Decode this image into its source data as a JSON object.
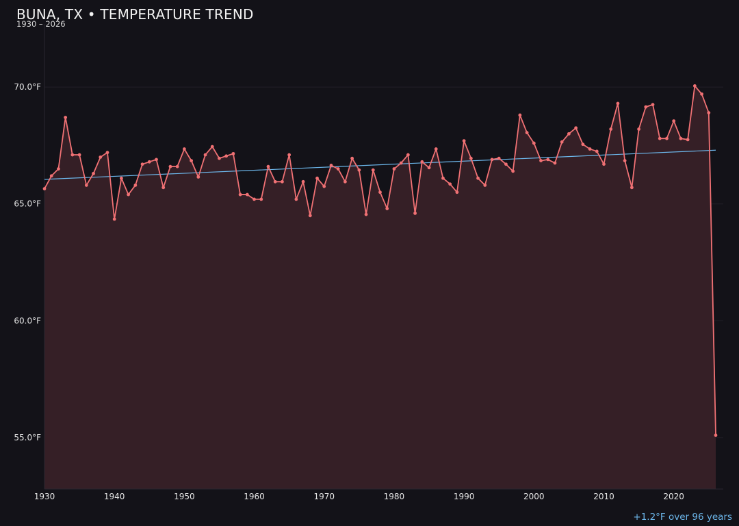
{
  "header": {
    "title": "BUNA, TX • TEMPERATURE TREND",
    "subtitle": "1930 – 2026"
  },
  "footnote": "+1.2°F over 96 years",
  "colors": {
    "background": "#131218",
    "series_line": "#f07174",
    "area_fill": "#351f26",
    "trend_line": "#6cb6ea",
    "grid": "#221f27",
    "tick_text": "#e6e6e6"
  },
  "chart_data": {
    "type": "line",
    "title": "BUNA, TX • TEMPERATURE TREND",
    "subtitle": "1930 – 2026",
    "xlabel": "",
    "ylabel": "",
    "xlim": [
      1930,
      2027
    ],
    "ylim": [
      52.8,
      72.7
    ],
    "x_ticks": [
      1930,
      1940,
      1950,
      1960,
      1970,
      1980,
      1990,
      2000,
      2010,
      2020
    ],
    "x_tick_labels": [
      "1930",
      "1940",
      "1950",
      "1960",
      "1970",
      "1980",
      "1990",
      "2000",
      "2010",
      "2020"
    ],
    "y_ticks": [
      55,
      60,
      65,
      70
    ],
    "y_tick_labels": [
      "55.0°F",
      "60.0°F",
      "65.0°F",
      "70.0°F"
    ],
    "grid": "horizontal",
    "legend": "none",
    "series": [
      {
        "x": [
          1930,
          1931,
          1932,
          1933,
          1934,
          1935,
          1936,
          1937,
          1938,
          1939,
          1940,
          1941,
          1942,
          1943,
          1944,
          1945,
          1946,
          1947,
          1948,
          1949,
          1950,
          1951,
          1952,
          1953,
          1954,
          1955,
          1956,
          1957,
          1958,
          1959,
          1960,
          1961,
          1962,
          1963,
          1964,
          1965,
          1966,
          1967,
          1968,
          1969,
          1970,
          1971,
          1972,
          1973,
          1974,
          1975,
          1976,
          1977,
          1978,
          1979,
          1980,
          1981,
          1982,
          1983,
          1984,
          1985,
          1986,
          1987,
          1988,
          1989,
          1990,
          1991,
          1992,
          1993,
          1994,
          1995,
          1996,
          1997,
          1998,
          1999,
          2000,
          2001,
          2002,
          2003,
          2004,
          2005,
          2006,
          2007,
          2008,
          2009,
          2010,
          2011,
          2012,
          2013,
          2014,
          2015,
          2016,
          2017,
          2018,
          2019,
          2020,
          2021,
          2022,
          2023,
          2024,
          2025,
          2026
        ],
        "y": [
          65.65,
          66.2,
          66.5,
          68.7,
          67.1,
          67.1,
          65.8,
          66.3,
          67.0,
          67.2,
          64.35,
          66.1,
          65.4,
          65.8,
          66.7,
          66.8,
          66.9,
          65.7,
          66.6,
          66.6,
          67.35,
          66.85,
          66.15,
          67.1,
          67.45,
          66.95,
          67.05,
          67.15,
          65.4,
          65.4,
          65.2,
          65.2,
          66.6,
          65.95,
          65.95,
          67.1,
          65.2,
          65.95,
          64.5,
          66.1,
          65.75,
          66.65,
          66.5,
          65.95,
          66.95,
          66.45,
          64.55,
          66.45,
          65.5,
          64.8,
          66.5,
          66.75,
          67.1,
          64.6,
          66.8,
          66.55,
          67.35,
          66.1,
          65.85,
          65.5,
          67.7,
          66.95,
          66.1,
          65.8,
          66.9,
          66.95,
          66.7,
          66.4,
          68.8,
          68.05,
          67.6,
          66.85,
          66.9,
          66.75,
          67.65,
          68.0,
          68.25,
          67.55,
          67.35,
          67.25,
          66.7,
          68.2,
          69.3,
          66.85,
          65.7,
          68.2,
          69.15,
          69.25,
          67.8,
          67.8,
          68.55,
          67.8,
          67.75,
          70.05,
          69.7,
          68.9,
          55.1
        ]
      }
    ],
    "trend": {
      "x": [
        1930,
        2026
      ],
      "y": [
        66.05,
        67.3
      ]
    },
    "annotations": [
      "+1.2°F over 96 years"
    ]
  }
}
